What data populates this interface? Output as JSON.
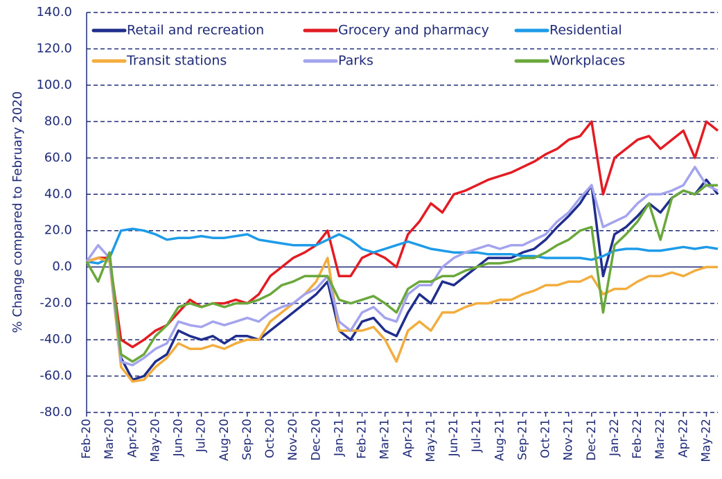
{
  "chart_data": {
    "type": "line",
    "y_label": "% Change compared to February 2020",
    "categories": [
      "Feb-20",
      null,
      "Mar-20",
      null,
      "Apr-20",
      null,
      "May-20",
      null,
      "Jun-20",
      null,
      "Jul-20",
      null,
      "Aug-20",
      null,
      "Sep-20",
      null,
      "Oct-20",
      null,
      "Nov-20",
      null,
      "Dec-20",
      null,
      "Jan-21",
      null,
      "Feb-21",
      null,
      "Mar-21",
      null,
      "Apr-21",
      null,
      "May-21",
      null,
      "Jun-21",
      null,
      "Jul-21",
      null,
      "Aug-21",
      null,
      "Sep-21",
      null,
      "Oct-21",
      null,
      "Nov-21",
      null,
      "Dec-21",
      null,
      "Jan-22",
      null,
      "Feb-22",
      null,
      "Mar-22",
      null,
      "Apr-22",
      null,
      "May-22",
      null
    ],
    "series": [
      {
        "name": "Retail and recreation",
        "color": "#1f2d8c",
        "values": [
          3,
          5,
          5,
          -50,
          -62,
          -60,
          -52,
          -48,
          -35,
          -38,
          -40,
          -38,
          -42,
          -38,
          -38,
          -40,
          -35,
          -30,
          -25,
          -20,
          -15,
          -8,
          -35,
          -40,
          -30,
          -28,
          -35,
          -38,
          -25,
          -15,
          -20,
          -8,
          -10,
          -5,
          0,
          5,
          5,
          5,
          8,
          10,
          15,
          22,
          28,
          35,
          45,
          -5,
          18,
          22,
          28,
          35,
          30,
          38,
          42,
          40,
          48,
          40
        ]
      },
      {
        "name": "Grocery and pharmacy",
        "color": "#e31b23",
        "values": [
          3,
          5,
          5,
          -40,
          -44,
          -40,
          -35,
          -32,
          -25,
          -18,
          -22,
          -20,
          -20,
          -18,
          -20,
          -15,
          -5,
          0,
          5,
          8,
          12,
          20,
          -5,
          -5,
          5,
          8,
          5,
          0,
          18,
          25,
          35,
          30,
          40,
          42,
          45,
          48,
          50,
          52,
          55,
          58,
          62,
          65,
          70,
          72,
          80,
          40,
          60,
          65,
          70,
          72,
          65,
          70,
          75,
          60,
          80,
          75
        ]
      },
      {
        "name": "Residential",
        "color": "#1e9be8",
        "values": [
          3,
          2,
          5,
          20,
          21,
          20,
          18,
          15,
          16,
          16,
          17,
          16,
          16,
          17,
          18,
          15,
          14,
          13,
          12,
          12,
          12,
          15,
          18,
          15,
          10,
          8,
          10,
          12,
          14,
          12,
          10,
          9,
          8,
          8,
          8,
          7,
          7,
          7,
          6,
          6,
          5,
          5,
          5,
          5,
          4,
          6,
          9,
          10,
          10,
          9,
          9,
          10,
          11,
          10,
          11,
          10
        ]
      },
      {
        "name": "Transit stations",
        "color": "#f2ad3e",
        "values": [
          3,
          5,
          3,
          -55,
          -63,
          -62,
          -55,
          -50,
          -42,
          -45,
          -45,
          -43,
          -45,
          -42,
          -40,
          -40,
          -30,
          -25,
          -20,
          -15,
          -8,
          5,
          -35,
          -35,
          -35,
          -33,
          -40,
          -52,
          -35,
          -30,
          -35,
          -25,
          -25,
          -22,
          -20,
          -20,
          -18,
          -18,
          -15,
          -13,
          -10,
          -10,
          -8,
          -8,
          -5,
          -15,
          -12,
          -12,
          -8,
          -5,
          -5,
          -3,
          -5,
          -2,
          0,
          0
        ]
      },
      {
        "name": "Parks",
        "color": "#a3a3ee",
        "values": [
          3,
          12,
          5,
          -52,
          -54,
          -50,
          -45,
          -42,
          -30,
          -32,
          -33,
          -30,
          -32,
          -30,
          -28,
          -30,
          -25,
          -22,
          -20,
          -15,
          -12,
          -5,
          -30,
          -35,
          -25,
          -22,
          -28,
          -30,
          -15,
          -10,
          -10,
          0,
          5,
          8,
          10,
          12,
          10,
          12,
          12,
          15,
          18,
          25,
          30,
          38,
          45,
          22,
          25,
          28,
          35,
          40,
          40,
          42,
          45,
          55,
          45,
          42
        ]
      },
      {
        "name": "Workplaces",
        "color": "#6aa83c",
        "values": [
          3,
          -8,
          8,
          -48,
          -52,
          -48,
          -38,
          -32,
          -22,
          -20,
          -22,
          -20,
          -22,
          -20,
          -20,
          -18,
          -15,
          -10,
          -8,
          -5,
          -5,
          -5,
          -18,
          -20,
          -18,
          -16,
          -20,
          -25,
          -12,
          -8,
          -8,
          -5,
          -5,
          -2,
          0,
          2,
          2,
          3,
          5,
          5,
          8,
          12,
          15,
          20,
          22,
          -25,
          12,
          18,
          25,
          35,
          15,
          38,
          42,
          40,
          45,
          45
        ]
      }
    ],
    "ylim": [
      -80,
      140
    ],
    "yticks": [
      {
        "value": -80,
        "label": "-80.0"
      },
      {
        "value": -60,
        "label": "-60.0"
      },
      {
        "value": -40,
        "label": "-40.0"
      },
      {
        "value": -20,
        "label": "-20.0"
      },
      {
        "value": 0,
        "label": "0.0"
      },
      {
        "value": 20,
        "label": "20.0"
      },
      {
        "value": 40,
        "label": "40.0"
      },
      {
        "value": 60,
        "label": "60.0"
      },
      {
        "value": 80,
        "label": "80.0"
      },
      {
        "value": 100,
        "label": "100.0"
      },
      {
        "value": 120,
        "label": "120.0"
      },
      {
        "value": 140,
        "label": "140.0"
      }
    ],
    "grid": true,
    "legend": "top"
  }
}
